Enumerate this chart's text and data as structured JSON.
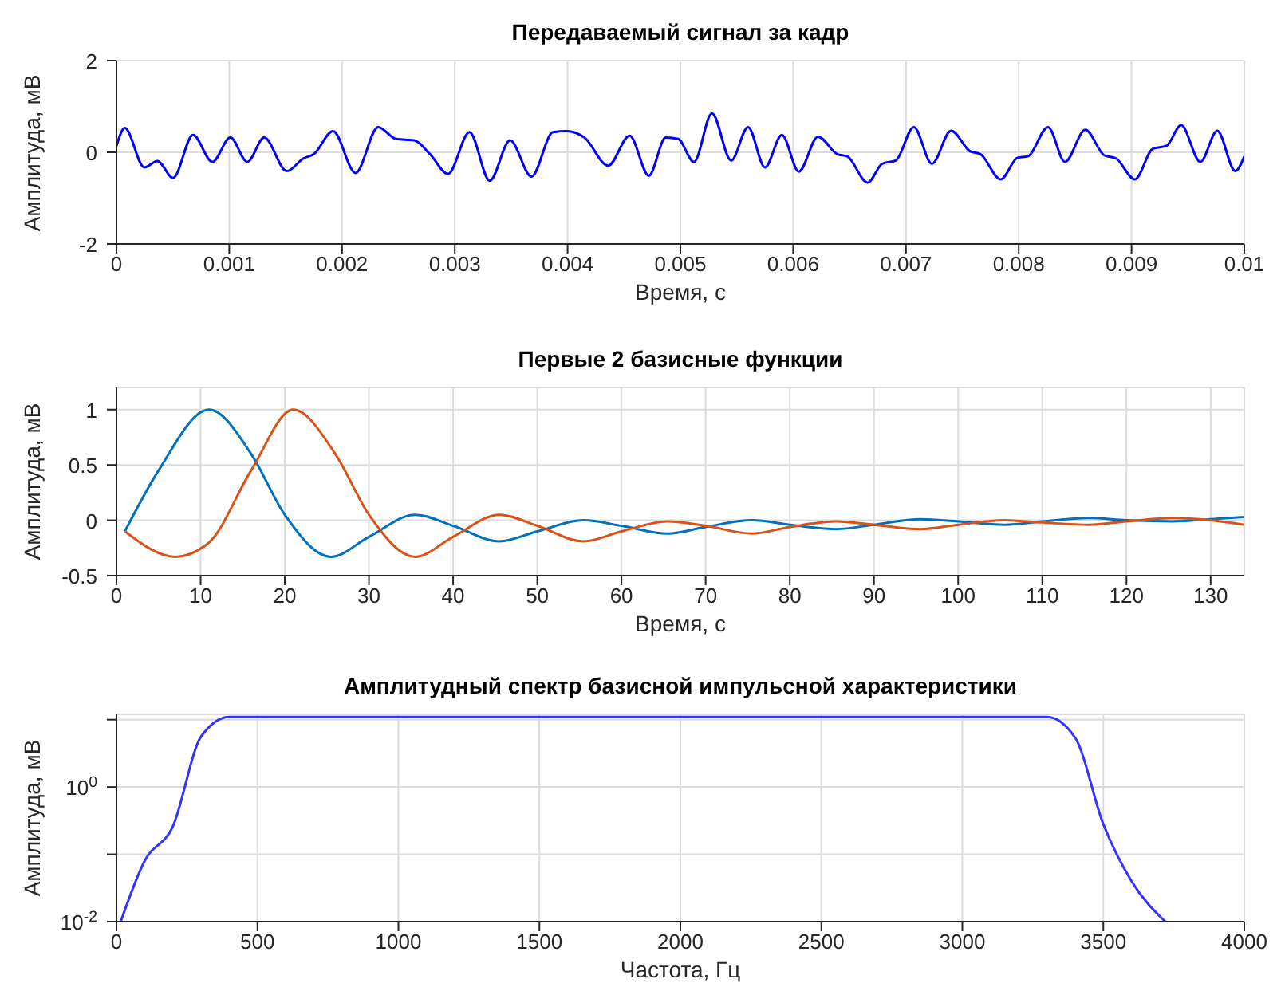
{
  "chart_data": [
    {
      "type": "line",
      "title": "Передаваемый сигнал за кадр",
      "xlabel": "Время, с",
      "ylabel": "Амплитуда, мВ",
      "xlim": [
        0,
        0.01
      ],
      "xticks": [
        0,
        0.001,
        0.002,
        0.003,
        0.004,
        0.005,
        0.006,
        0.007,
        0.008,
        0.009,
        0.01
      ],
      "ylim": [
        -2,
        2
      ],
      "yticks": [
        -2,
        0,
        2
      ],
      "grid": true,
      "marker": "none",
      "line_style": "solid",
      "x": [
        0,
        7.4e-05,
        0.000247,
        0.000363,
        0.000502,
        0.000679,
        0.00085,
        0.00101,
        0.00116,
        0.00131,
        0.00151,
        0.00166,
        0.00175,
        0.00192,
        0.00212,
        0.00232,
        0.00248,
        0.00264,
        0.00278,
        0.00294,
        0.00313,
        0.00331,
        0.00349,
        0.00368,
        0.00387,
        0.00399,
        0.00415,
        0.00436,
        0.00455,
        0.00472,
        0.00487,
        0.00498,
        0.00512,
        0.00528,
        0.00545,
        0.0056,
        0.00575,
        0.0059,
        0.00605,
        0.00622,
        0.00639,
        0.00648,
        0.00666,
        0.00679,
        0.00691,
        0.00707,
        0.00723,
        0.0074,
        0.00757,
        0.00766,
        0.00784,
        0.00799,
        0.00808,
        0.00826,
        0.00841,
        0.00859,
        0.00876,
        0.00886,
        0.00903,
        0.00919,
        0.00931,
        0.00944,
        0.00961,
        0.00976,
        0.00992,
        0.01
      ],
      "series": [
        {
          "color": "#0000ff",
          "values": [
            0.14,
            0.53,
            -0.33,
            -0.19,
            -0.56,
            0.38,
            -0.21,
            0.32,
            -0.21,
            0.32,
            -0.41,
            -0.13,
            -0.04,
            0.46,
            -0.45,
            0.55,
            0.29,
            0.26,
            -0.04,
            -0.47,
            0.44,
            -0.62,
            0.26,
            -0.53,
            0.44,
            0.46,
            0.32,
            -0.29,
            0.36,
            -0.51,
            0.32,
            0.29,
            -0.21,
            0.85,
            -0.18,
            0.55,
            -0.33,
            0.38,
            -0.42,
            0.34,
            -0.04,
            -0.09,
            -0.66,
            -0.25,
            -0.18,
            0.55,
            -0.25,
            0.47,
            0.02,
            -0.04,
            -0.59,
            -0.12,
            -0.09,
            0.55,
            -0.21,
            0.49,
            -0.07,
            -0.13,
            -0.59,
            0.08,
            0.14,
            0.59,
            -0.21,
            0.47,
            -0.41,
            -0.09
          ]
        }
      ]
    },
    {
      "type": "line",
      "title": "Первые 2 базисные функции",
      "xlabel": "Время, с",
      "ylabel": "Амплитуда, мВ",
      "xlim": [
        0,
        134
      ],
      "xticks": [
        0,
        10,
        20,
        30,
        40,
        50,
        60,
        70,
        80,
        90,
        100,
        110,
        120,
        130
      ],
      "ylim": [
        -0.5,
        1.2
      ],
      "yticks": [
        -0.5,
        0,
        0.5,
        1
      ],
      "grid": true,
      "marker": "none",
      "line_style": "solid",
      "x": [
        1,
        5,
        11,
        16,
        20,
        25.5,
        30,
        35.5,
        40,
        45.5,
        50,
        55.5,
        60,
        65.5,
        70,
        75.5,
        80,
        85.5,
        90,
        95.5,
        100,
        105.5,
        110,
        115.5,
        120,
        125.5,
        130,
        134
      ],
      "series": [
        {
          "color": "#0072bd",
          "values": [
            -0.1,
            0.45,
            1.0,
            0.6,
            0.05,
            -0.33,
            -0.15,
            0.05,
            -0.05,
            -0.19,
            -0.1,
            0.0,
            -0.05,
            -0.12,
            -0.06,
            0.0,
            -0.04,
            -0.08,
            -0.04,
            0.01,
            -0.01,
            -0.04,
            -0.01,
            0.02,
            0.0,
            -0.01,
            0.01,
            0.03
          ]
        },
        {
          "color": "#d95319",
          "x": [
            1,
            7,
            11,
            16,
            21,
            26,
            30,
            35.5,
            40,
            45.5,
            50,
            55.5,
            60,
            65.5,
            70,
            75.5,
            80,
            85.5,
            90,
            95.5,
            100,
            105.5,
            110,
            115.5,
            120,
            125.5,
            130,
            134
          ],
          "values": [
            -0.1,
            -0.33,
            -0.2,
            0.45,
            1.0,
            0.6,
            0.05,
            -0.33,
            -0.15,
            0.05,
            -0.05,
            -0.19,
            -0.1,
            -0.01,
            -0.05,
            -0.12,
            -0.06,
            -0.01,
            -0.04,
            -0.08,
            -0.04,
            0.0,
            -0.02,
            -0.04,
            -0.01,
            0.02,
            0.0,
            -0.04
          ]
        }
      ]
    },
    {
      "type": "line",
      "title": "Амплитудный спектр базисной импульсной характеристики",
      "xlabel": "Частота, Гц",
      "ylabel": "Амплитуда, мВ",
      "log": "y",
      "xlim": [
        0,
        4000
      ],
      "xticks": [
        0,
        500,
        1000,
        1500,
        2000,
        2500,
        3000,
        3500,
        4000
      ],
      "ylim": [
        0.01,
        12
      ],
      "yticks": [
        {
          "value": 0.01,
          "label": "10$^{-2}$"
        },
        {
          "value": 0.1,
          "label": null
        },
        {
          "value": 1,
          "label": "10$^{0}$"
        },
        {
          "value": 10,
          "label": null
        }
      ],
      "grid": true,
      "marker": "none",
      "line_style": "solid",
      "x": [
        15,
        100,
        200,
        300,
        400,
        3300,
        3400,
        3500,
        3600,
        3720
      ],
      "series": [
        {
          "color": "#3333ff",
          "values": [
            0.01,
            0.08,
            0.26,
            5.6,
            11,
            11,
            5.4,
            0.28,
            0.04,
            0.01
          ]
        }
      ]
    }
  ]
}
